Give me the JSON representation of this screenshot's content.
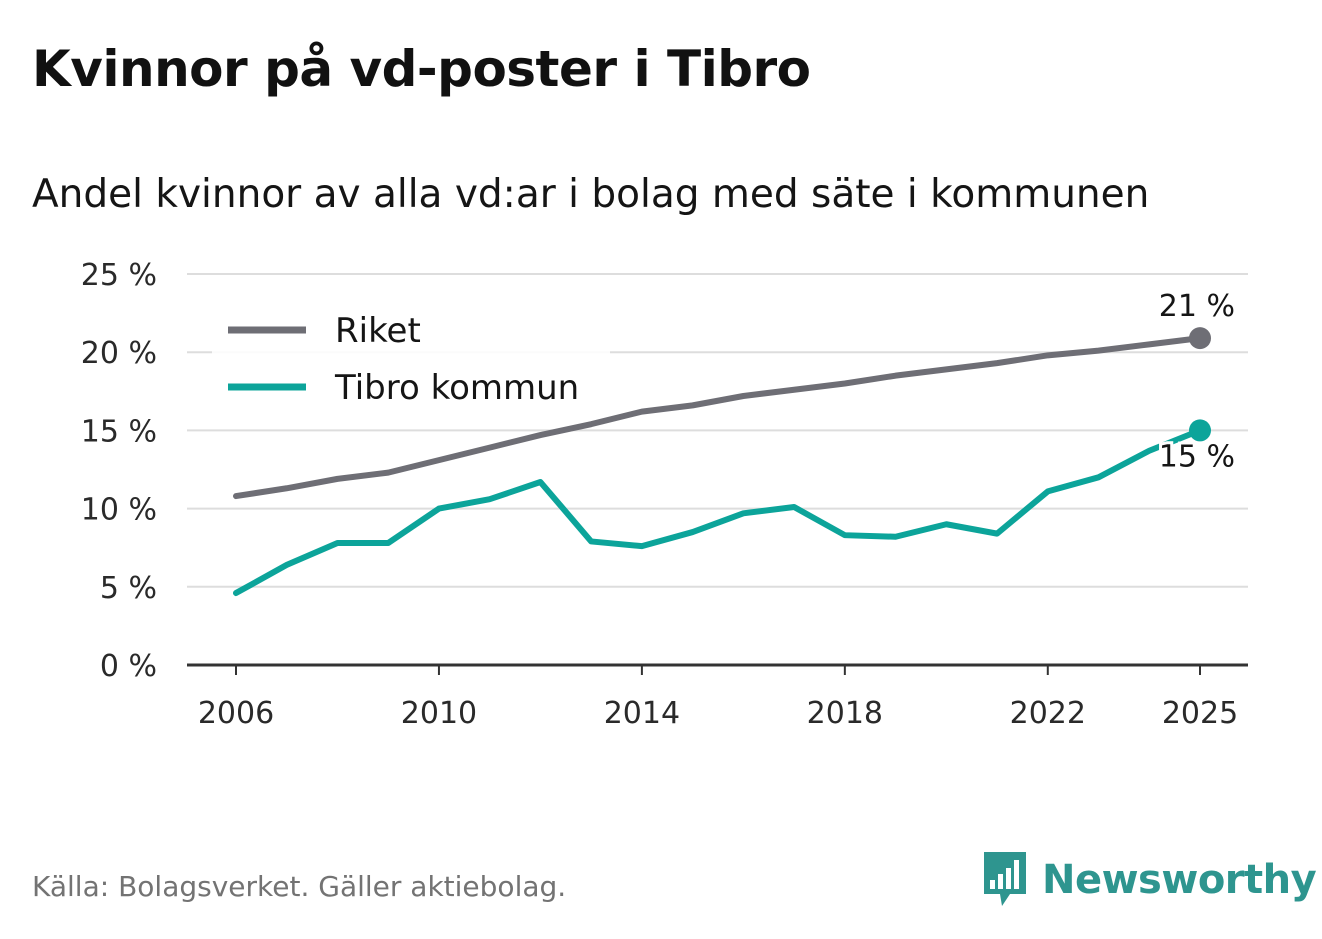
{
  "title": "Kvinnor på vd-poster i Tibro",
  "subtitle": "Andel kvinnor av alla vd:ar i bolag med säte i kommunen",
  "source": "Källa: Bolagsverket. Gäller aktiebolag.",
  "brand": {
    "name": "Newsworthy",
    "icon": "newsworthy-logo-icon"
  },
  "colors": {
    "riket": "#6e6e75",
    "tibro": "#0ca49a",
    "grid": "#dddddd",
    "axis": "#333333",
    "brand": "#2e958f"
  },
  "chart_data": {
    "type": "line",
    "x": [
      2006,
      2007,
      2008,
      2009,
      2010,
      2011,
      2012,
      2013,
      2014,
      2015,
      2016,
      2017,
      2018,
      2019,
      2020,
      2021,
      2022,
      2023,
      2024,
      2025
    ],
    "series": [
      {
        "name": "Riket",
        "color": "#6e6e75",
        "values": [
          10.8,
          11.3,
          11.9,
          12.3,
          13.1,
          13.9,
          14.7,
          15.4,
          16.2,
          16.6,
          17.2,
          17.6,
          18.0,
          18.5,
          18.9,
          19.3,
          19.8,
          20.1,
          20.5,
          20.9
        ],
        "end_label": "21 %"
      },
      {
        "name": "Tibro kommun",
        "color": "#0ca49a",
        "values": [
          4.6,
          6.4,
          7.8,
          7.8,
          10.0,
          10.6,
          11.7,
          7.9,
          7.6,
          8.5,
          9.7,
          10.1,
          8.3,
          8.2,
          9.0,
          8.4,
          11.1,
          12.0,
          13.7,
          15.0
        ],
        "end_label": "15 %"
      }
    ],
    "xticks": [
      "2006",
      "2010",
      "2014",
      "2018",
      "2022",
      "2025"
    ],
    "yticks": [
      "0 %",
      "5 %",
      "10 %",
      "15 %",
      "20 %",
      "25 %"
    ],
    "ylim": [
      0,
      25
    ],
    "xlabel": "",
    "ylabel": "",
    "legend": {
      "position": "top-left",
      "entries": [
        "Riket",
        "Tibro kommun"
      ]
    },
    "grid": true
  }
}
